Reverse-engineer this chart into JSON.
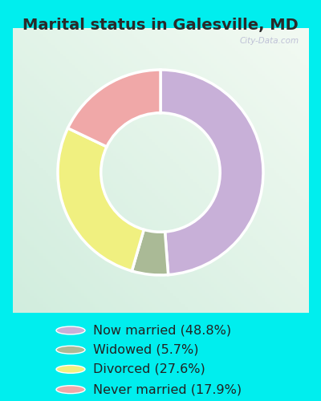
{
  "title": "Marital status in Galesville, MD",
  "slices": [
    48.8,
    5.7,
    27.6,
    17.9
  ],
  "labels": [
    "Now married (48.8%)",
    "Widowed (5.7%)",
    "Divorced (27.6%)",
    "Never married (17.9%)"
  ],
  "colors": [
    "#c8b0d8",
    "#aaba96",
    "#f0f080",
    "#f0a8a8"
  ],
  "donut_width": 0.42,
  "title_fontsize": 14,
  "legend_fontsize": 11.5,
  "start_angle": 90,
  "fig_bg": "#00eeee",
  "chart_bg": "#e8f5ee",
  "watermark": "City-Data.com"
}
